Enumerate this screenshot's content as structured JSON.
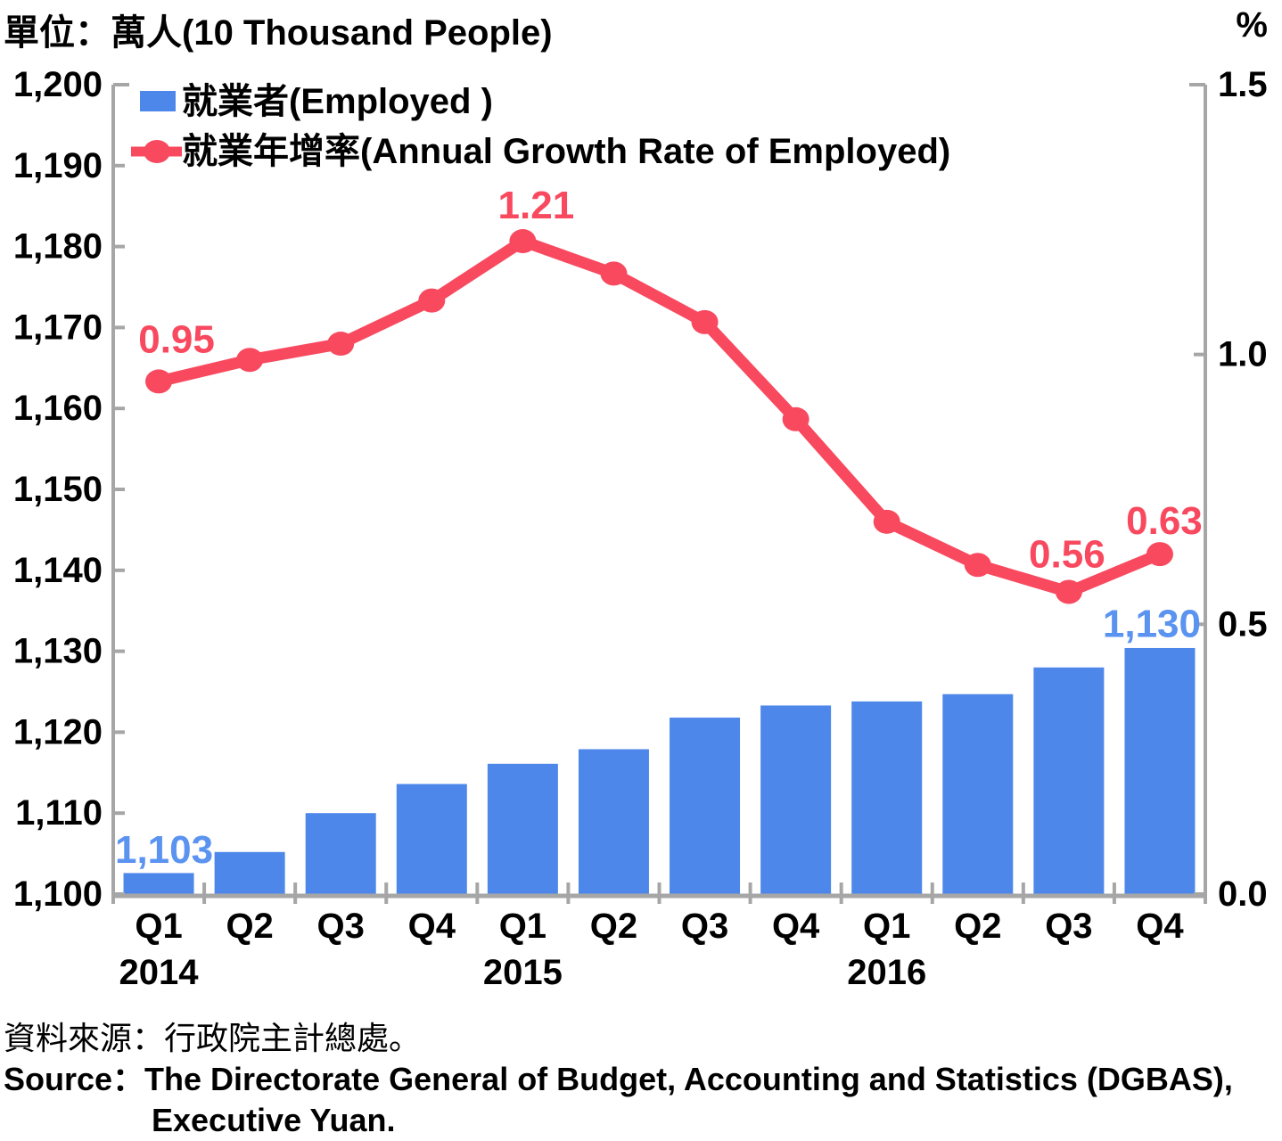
{
  "header": {
    "unit_label": "單位：萬人(10 Thousand People)",
    "right_unit_label": "%"
  },
  "chart_data": {
    "type": "combo-bar-line",
    "categories": [
      "Q1",
      "Q2",
      "Q3",
      "Q4",
      "Q1",
      "Q2",
      "Q3",
      "Q4",
      "Q1",
      "Q2",
      "Q3",
      "Q4"
    ],
    "years": [
      2014,
      2014,
      2014,
      2014,
      2015,
      2015,
      2015,
      2015,
      2016,
      2016,
      2016,
      2016
    ],
    "year_labels": [
      {
        "text": "2014",
        "category_index": 0
      },
      {
        "text": "2015",
        "category_index": 4
      },
      {
        "text": "2016",
        "category_index": 8
      }
    ],
    "left_axis": {
      "title": "萬人(10 Thousand People)",
      "min": 1100,
      "max": 1200,
      "step": 10,
      "tick_labels": [
        "1,100",
        "1,110",
        "1,120",
        "1,130",
        "1,140",
        "1,150",
        "1,160",
        "1,170",
        "1,180",
        "1,190",
        "1,200"
      ]
    },
    "right_axis": {
      "title": "%",
      "min": 0,
      "max": 1.5,
      "step": 0.5,
      "tick_labels": [
        "0.0",
        "0.5",
        "1.0",
        "1.5"
      ]
    },
    "grid": false,
    "legend_position": "top-left-inside",
    "series": [
      {
        "name": "就業者(Employed )",
        "type": "bar",
        "axis": "left",
        "color": "#4E87EA",
        "label_color": "#5B93F0",
        "values": [
          1102.6,
          1105.2,
          1110.0,
          1113.6,
          1116.1,
          1117.9,
          1121.8,
          1123.3,
          1123.8,
          1124.7,
          1128.0,
          1130.4
        ],
        "point_labels": [
          {
            "index": 0,
            "text": "1,103",
            "dx": 6,
            "dy": -26
          },
          {
            "index": 11,
            "text": "1,130",
            "dx": -9,
            "dy": -27
          }
        ]
      },
      {
        "name": "就業年增率(Annual Growth Rate of Employed)",
        "type": "line",
        "axis": "right",
        "color": "#F8495F",
        "label_color": "#F8495F",
        "values": [
          0.95,
          0.99,
          1.02,
          1.1,
          1.21,
          1.15,
          1.06,
          0.88,
          0.69,
          0.61,
          0.56,
          0.63
        ],
        "point_labels": [
          {
            "index": 0,
            "text": "0.95",
            "dx": 20,
            "dy": -47
          },
          {
            "index": 4,
            "text": "1.21",
            "dx": 15,
            "dy": -40
          },
          {
            "index": 10,
            "text": "0.56",
            "dx": -2,
            "dy": -42
          },
          {
            "index": 11,
            "text": "0.63",
            "dx": 5,
            "dy": -37
          }
        ]
      }
    ]
  },
  "source": {
    "line1": "資料來源：行政院主計總處。",
    "line2": "Source：The Directorate General of Budget, Accounting and Statistics (DGBAS),",
    "line3": "Executive Yuan."
  },
  "colors": {
    "axis": "#A6A6A6",
    "text": "#000000",
    "background": "#FFFFFF"
  }
}
